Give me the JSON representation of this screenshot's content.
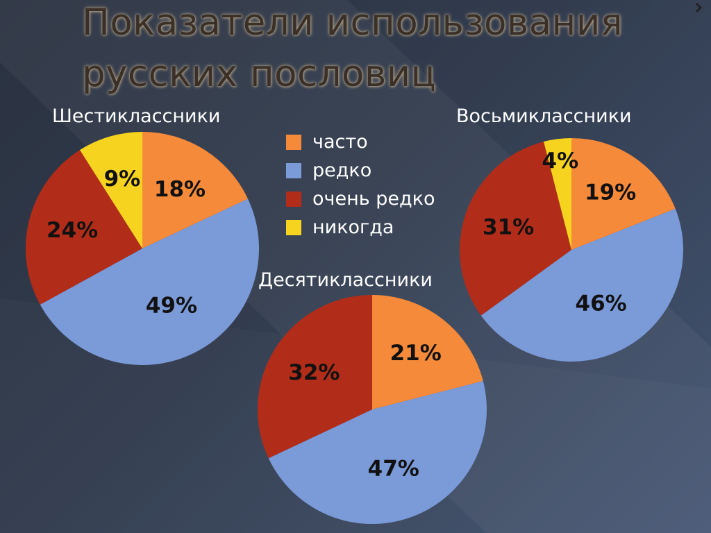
{
  "title": {
    "line1": "Показатели использования",
    "line2": "русских пословиц"
  },
  "legend": [
    {
      "label": "часто",
      "color": "#f58a3a"
    },
    {
      "label": "редко",
      "color": "#7b9ad8"
    },
    {
      "label": "очень редко",
      "color": "#b12d1a"
    },
    {
      "label": "никогда",
      "color": "#f6d31e"
    }
  ],
  "chart_data": [
    {
      "type": "pie",
      "title": "Шестиклассники",
      "categories": [
        "часто",
        "редко",
        "очень редко",
        "никогда"
      ],
      "values": [
        18,
        49,
        24,
        9
      ],
      "labels": [
        "18%",
        "49%",
        "24%",
        "9%"
      ],
      "legend": "center"
    },
    {
      "type": "pie",
      "title": "Восьмиклассники",
      "categories": [
        "часто",
        "редко",
        "очень редко",
        "никогда"
      ],
      "values": [
        19,
        46,
        31,
        4
      ],
      "labels": [
        "19%",
        "46%",
        "31%",
        "4%"
      ],
      "legend": "center"
    },
    {
      "type": "pie",
      "title": "Десятиклассники",
      "categories": [
        "часто",
        "редко",
        "очень редко",
        "никогда"
      ],
      "values": [
        21,
        47,
        32,
        0
      ],
      "labels": [
        "21%",
        "47%",
        "32%",
        ""
      ],
      "legend": "center"
    }
  ]
}
